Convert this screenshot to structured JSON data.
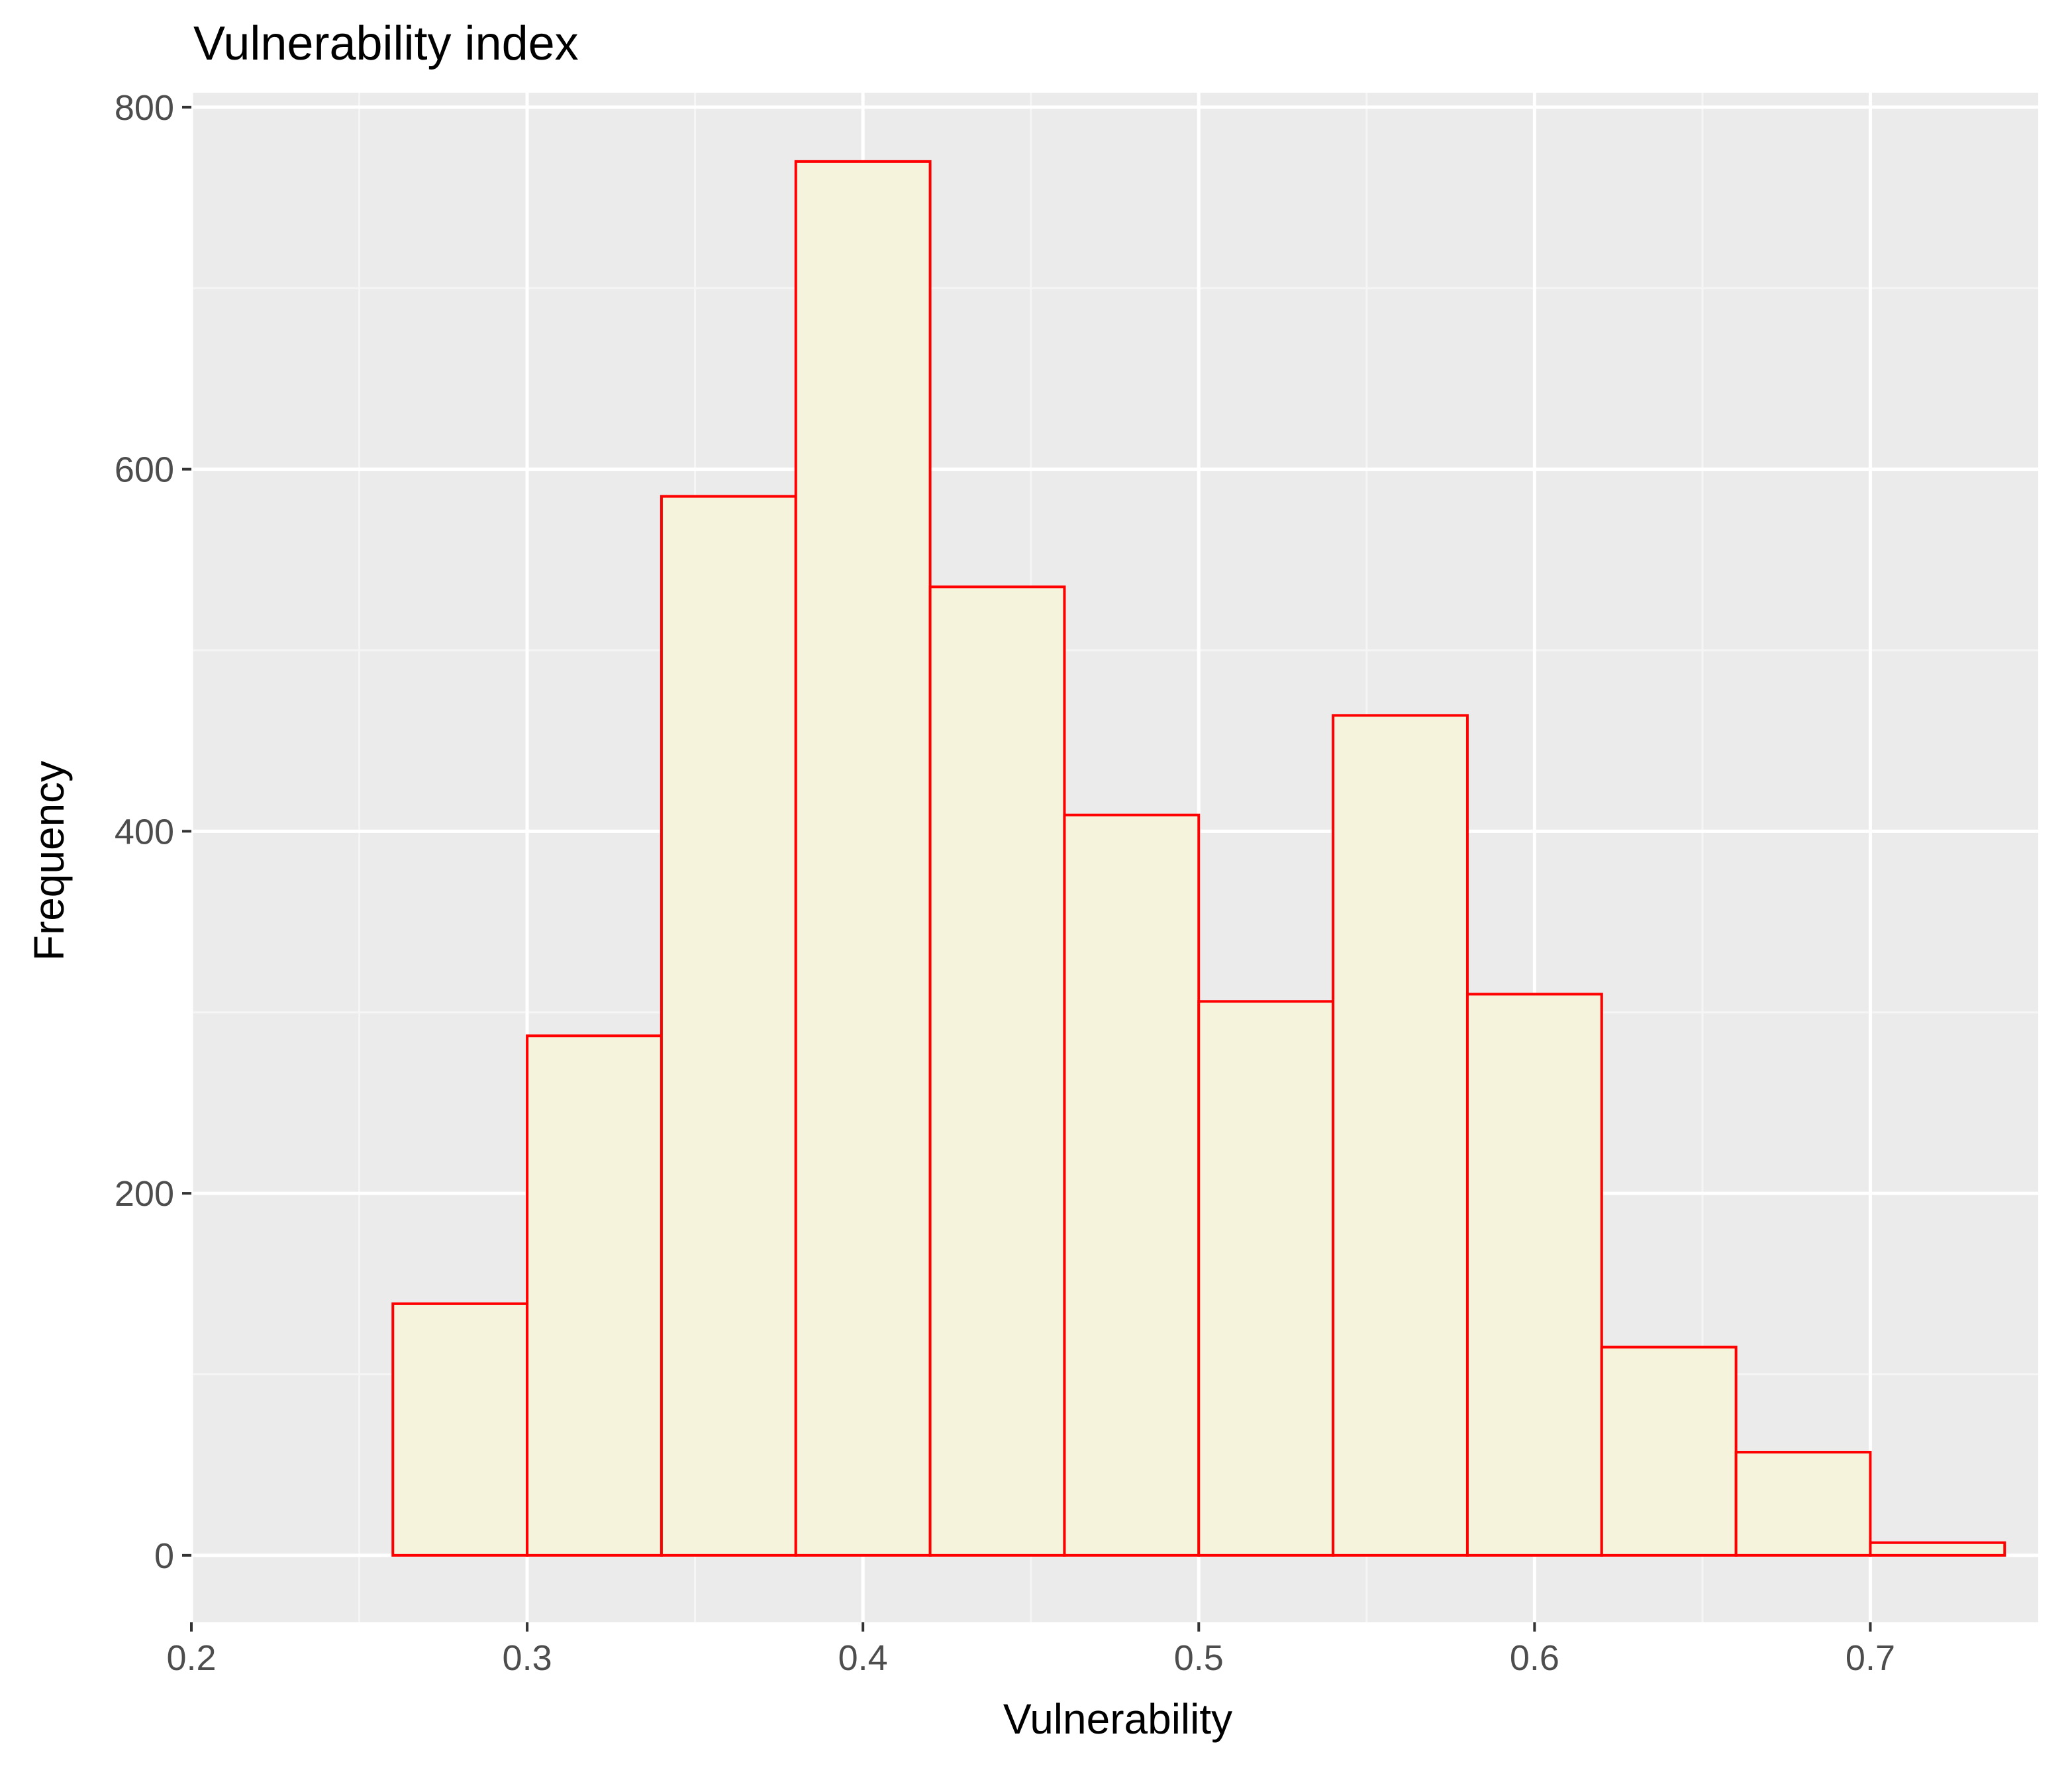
{
  "chart_data": {
    "type": "bar",
    "title": "Vulnerability index",
    "xlabel": "Vulnerability",
    "ylabel": "Frequency",
    "xlim": [
      0.2,
      0.75
    ],
    "ylim": [
      -37,
      808
    ],
    "x_ticks": [
      0.2,
      0.3,
      0.4,
      0.5,
      0.6,
      0.7
    ],
    "x_tick_labels": [
      "0.2",
      "0.3",
      "0.4",
      "0.5",
      "0.6",
      "0.7"
    ],
    "y_ticks": [
      0,
      200,
      400,
      600,
      800
    ],
    "y_tick_labels": [
      "0",
      "200",
      "400",
      "600",
      "800"
    ],
    "bins": [
      {
        "x0": 0.22,
        "x1": 0.26,
        "value": 0
      },
      {
        "x0": 0.26,
        "x1": 0.3,
        "value": 139
      },
      {
        "x0": 0.3,
        "x1": 0.34,
        "value": 287
      },
      {
        "x0": 0.34,
        "x1": 0.38,
        "value": 585
      },
      {
        "x0": 0.38,
        "x1": 0.42,
        "value": 770
      },
      {
        "x0": 0.42,
        "x1": 0.46,
        "value": 535
      },
      {
        "x0": 0.46,
        "x1": 0.5,
        "value": 409
      },
      {
        "x0": 0.5,
        "x1": 0.54,
        "value": 306
      },
      {
        "x0": 0.54,
        "x1": 0.58,
        "value": 464
      },
      {
        "x0": 0.58,
        "x1": 0.62,
        "value": 310
      },
      {
        "x0": 0.62,
        "x1": 0.66,
        "value": 115
      },
      {
        "x0": 0.66,
        "x1": 0.7,
        "value": 57
      },
      {
        "x0": 0.7,
        "x1": 0.74,
        "value": 7
      }
    ],
    "grid": true,
    "colors": {
      "panel_background": "#ebebeb",
      "grid_major": "#ffffff",
      "grid_minor": "#f5f5f5",
      "bar_fill": "#f5f3dc",
      "bar_outline": "#ff0000",
      "axis_text": "#4d4d4d",
      "title_text": "#000000",
      "tick_mark": "#333333"
    }
  }
}
